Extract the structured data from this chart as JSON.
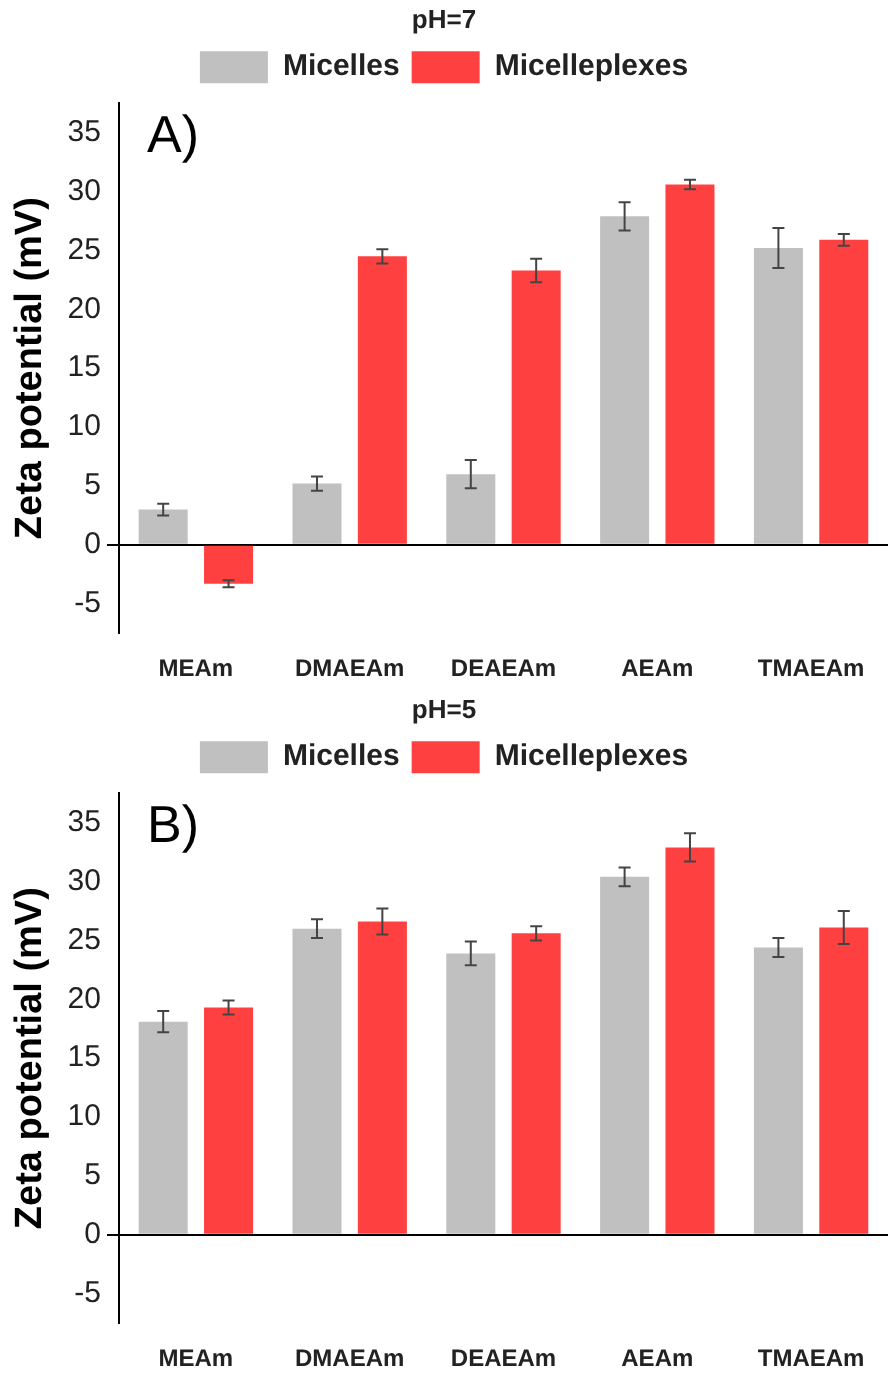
{
  "chart_data": [
    {
      "type": "bar",
      "annotations": [
        "A)"
      ],
      "legend_title": "pH=7",
      "ylabel": "Zeta potential (mV)",
      "categories": [
        "MEAm",
        "DMAEAm",
        "DEAEAm",
        "AEAm",
        "TMAEAm"
      ],
      "legend": "top",
      "series": [
        {
          "name": "Micelles",
          "color": "#c0c0c0",
          "values": [
            3.0,
            5.2,
            6.0,
            27.9,
            25.2
          ],
          "errors": [
            0.5,
            0.6,
            1.2,
            1.2,
            1.7
          ]
        },
        {
          "name": "Micelleplexes",
          "color": "#ff4040",
          "values": [
            -3.3,
            24.5,
            23.3,
            30.6,
            25.9
          ],
          "errors": [
            0.3,
            0.6,
            1.0,
            0.4,
            0.5
          ]
        }
      ],
      "ylim": [
        -7.5,
        37.5
      ],
      "yticks": [
        -5,
        0,
        5,
        10,
        15,
        20,
        25,
        30,
        35
      ]
    },
    {
      "type": "bar",
      "annotations": [
        "B)"
      ],
      "legend_title": "pH=5",
      "ylabel": "Zeta potential (mV)",
      "categories": [
        "MEAm",
        "DMAEAm",
        "DEAEAm",
        "AEAm",
        "TMAEAm"
      ],
      "legend": "top",
      "series": [
        {
          "name": "Micelles",
          "color": "#c0c0c0",
          "values": [
            18.1,
            26.0,
            23.9,
            30.4,
            24.4
          ],
          "errors": [
            0.9,
            0.8,
            1.0,
            0.8,
            0.8
          ]
        },
        {
          "name": "Micelleplexes",
          "color": "#ff4040",
          "values": [
            19.3,
            26.6,
            25.6,
            32.9,
            26.1
          ],
          "errors": [
            0.6,
            1.1,
            0.6,
            1.2,
            1.4
          ]
        }
      ],
      "ylim": [
        -7.5,
        37.5
      ],
      "yticks": [
        -5,
        0,
        5,
        10,
        15,
        20,
        25,
        30,
        35
      ]
    }
  ]
}
